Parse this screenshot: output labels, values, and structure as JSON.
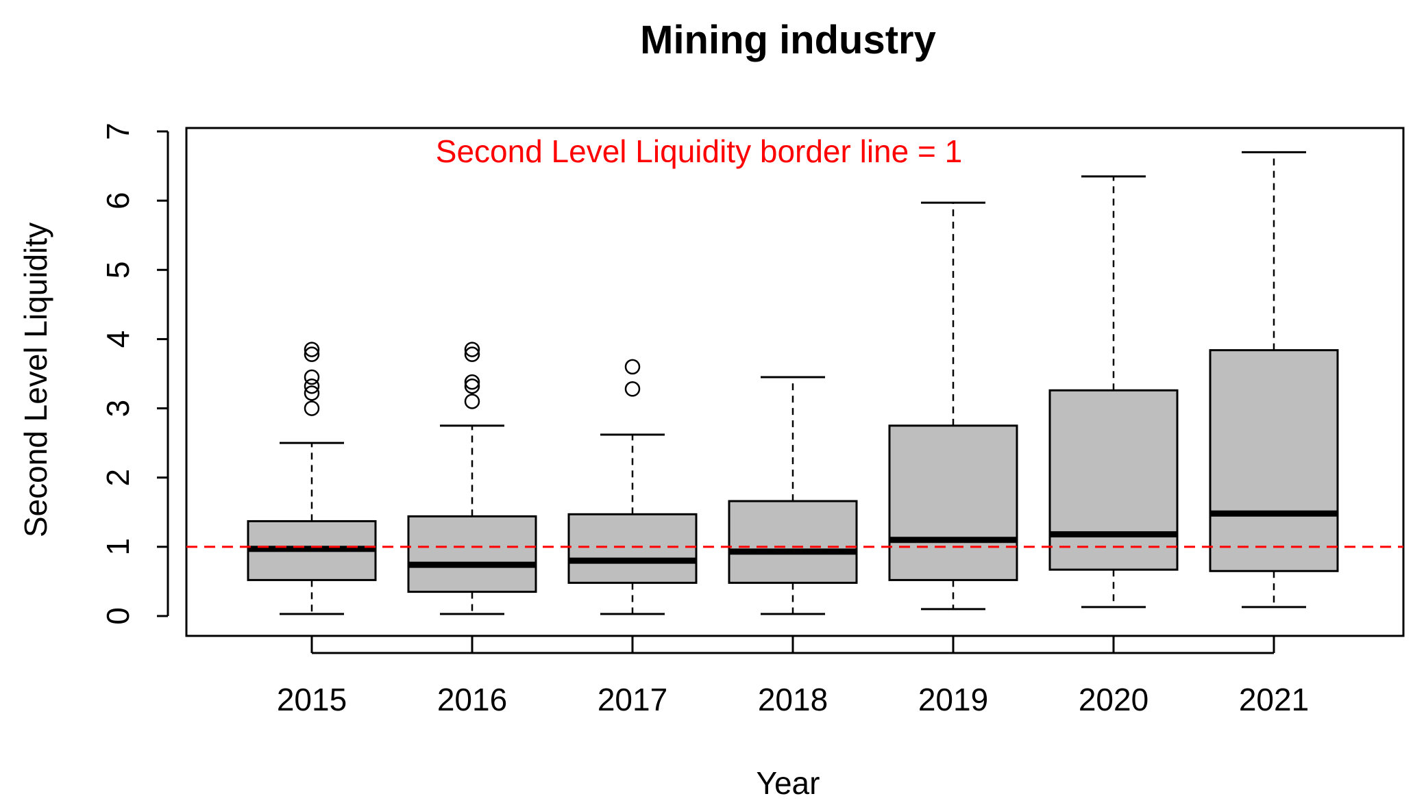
{
  "chart_data": {
    "type": "boxplot",
    "title": "Mining industry",
    "xlabel": "Year",
    "ylabel": "Second Level Liquidity",
    "ylim": [
      0,
      7
    ],
    "yticks": [
      0,
      1,
      2,
      3,
      4,
      5,
      6,
      7
    ],
    "categories": [
      "2015",
      "2016",
      "2017",
      "2018",
      "2019",
      "2020",
      "2021"
    ],
    "boxes": [
      {
        "category": "2015",
        "whisker_low": 0.03,
        "q1": 0.52,
        "median": 0.97,
        "q3": 1.37,
        "whisker_high": 2.5,
        "outliers": [
          3.0,
          3.22,
          3.32,
          3.45,
          3.78,
          3.85
        ]
      },
      {
        "category": "2016",
        "whisker_low": 0.03,
        "q1": 0.35,
        "median": 0.74,
        "q3": 1.44,
        "whisker_high": 2.75,
        "outliers": [
          3.1,
          3.32,
          3.38,
          3.78,
          3.85
        ]
      },
      {
        "category": "2017",
        "whisker_low": 0.03,
        "q1": 0.48,
        "median": 0.8,
        "q3": 1.47,
        "whisker_high": 2.62,
        "outliers": [
          3.28,
          3.6
        ]
      },
      {
        "category": "2018",
        "whisker_low": 0.03,
        "q1": 0.48,
        "median": 0.93,
        "q3": 1.66,
        "whisker_high": 3.45,
        "outliers": []
      },
      {
        "category": "2019",
        "whisker_low": 0.1,
        "q1": 0.52,
        "median": 1.1,
        "q3": 2.75,
        "whisker_high": 5.97,
        "outliers": []
      },
      {
        "category": "2020",
        "whisker_low": 0.13,
        "q1": 0.67,
        "median": 1.18,
        "q3": 3.26,
        "whisker_high": 6.35,
        "outliers": []
      },
      {
        "category": "2021",
        "whisker_low": 0.13,
        "q1": 0.65,
        "median": 1.48,
        "q3": 3.84,
        "whisker_high": 6.7,
        "outliers": []
      }
    ],
    "reference_line": {
      "y": 1,
      "style": "dashed",
      "color": "#ff0000"
    },
    "annotation": "Second Level Liquidity border line = 1",
    "colors": {
      "box_fill": "#bebebe",
      "annotation": "#ff0000"
    }
  }
}
